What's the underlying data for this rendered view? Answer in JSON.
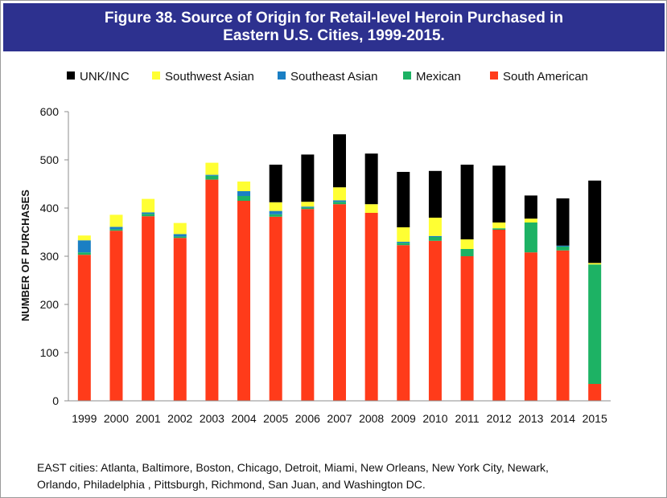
{
  "title": {
    "line1": "Figure 38. Source of Origin for Retail-level Heroin Purchased in",
    "line2": "Eastern U.S. Cities, 1999-2015."
  },
  "footnote": {
    "line1": "EAST cities: Atlanta, Baltimore, Boston, Chicago, Detroit, Miami, New Orleans, New York City, Newark,",
    "line2": "Orlando, Philadelphia , Pittsburgh, Richmond, San Juan, and Washington DC."
  },
  "chart_data": {
    "type": "bar",
    "stacked": true,
    "title": "Figure 38. Source of Origin for Retail-level Heroin Purchased in Eastern U.S. Cities, 1999-2015.",
    "xlabel": "",
    "ylabel": "NUMBER OF PURCHASES",
    "ylim": [
      0,
      600
    ],
    "yticks": [
      0,
      100,
      200,
      300,
      400,
      500,
      600
    ],
    "grid": false,
    "legend_position": "top",
    "categories": [
      "1999",
      "2000",
      "2001",
      "2002",
      "2003",
      "2004",
      "2005",
      "2006",
      "2007",
      "2008",
      "2009",
      "2010",
      "2011",
      "2012",
      "2013",
      "2014",
      "2015"
    ],
    "series": [
      {
        "name": "South American",
        "color": "#ff3b1a",
        "values": [
          303,
          353,
          383,
          338,
          459,
          415,
          382,
          398,
          408,
          390,
          323,
          332,
          300,
          355,
          308,
          312,
          35
        ]
      },
      {
        "name": "Mexican",
        "color": "#1db264",
        "values": [
          5,
          3,
          5,
          3,
          8,
          10,
          5,
          3,
          5,
          0,
          5,
          8,
          15,
          3,
          62,
          8,
          248
        ]
      },
      {
        "name": "Southeast Asian",
        "color": "#1a7fc4",
        "values": [
          25,
          5,
          3,
          5,
          2,
          10,
          7,
          2,
          3,
          0,
          2,
          2,
          0,
          0,
          0,
          2,
          0
        ]
      },
      {
        "name": "Southwest Asian",
        "color": "#ffff33",
        "values": [
          10,
          25,
          28,
          23,
          25,
          20,
          18,
          10,
          27,
          18,
          30,
          38,
          20,
          12,
          8,
          0,
          3
        ]
      },
      {
        "name": "UNK/INC",
        "color": "#000000",
        "values": [
          0,
          0,
          0,
          0,
          0,
          0,
          78,
          98,
          110,
          105,
          115,
          97,
          155,
          118,
          48,
          98,
          171
        ]
      }
    ],
    "legend_order": [
      "UNK/INC",
      "Southwest Asian",
      "Southeast Asian",
      "Mexican",
      "South American"
    ]
  }
}
